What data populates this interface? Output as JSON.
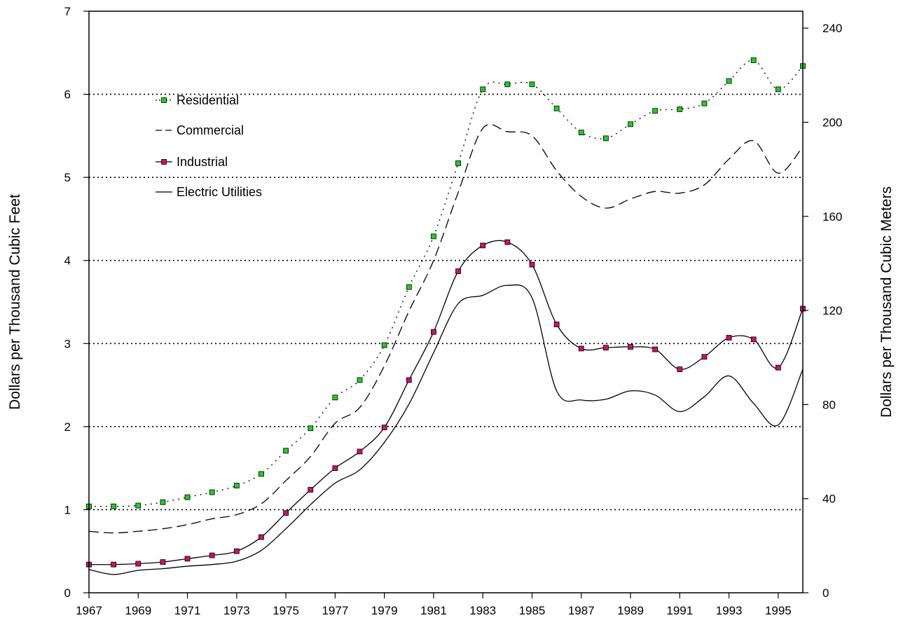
{
  "chart_data": {
    "type": "line",
    "xlabel": "",
    "ylabel": "Dollars per Thousand Cubic Feet",
    "ylabel_right": "Dollars per Thousand Cubic Meters",
    "xlim": [
      1967,
      1996
    ],
    "ylim": [
      0,
      7
    ],
    "ylim_right": [
      0,
      247.2
    ],
    "x_ticks": [
      1967,
      1969,
      1971,
      1973,
      1975,
      1977,
      1979,
      1981,
      1983,
      1985,
      1987,
      1989,
      1991,
      1993,
      1995
    ],
    "y_ticks": [
      0,
      1,
      2,
      3,
      4,
      5,
      6,
      7
    ],
    "y_ticks_right": [
      0,
      40,
      80,
      120,
      160,
      200,
      240
    ],
    "gridlines_y": [
      1,
      2,
      3,
      4,
      5,
      6
    ],
    "legend_position": "top-left",
    "x": [
      1967,
      1968,
      1969,
      1970,
      1971,
      1972,
      1973,
      1974,
      1975,
      1976,
      1977,
      1978,
      1979,
      1980,
      1981,
      1982,
      1983,
      1984,
      1985,
      1986,
      1987,
      1988,
      1989,
      1990,
      1991,
      1992,
      1993,
      1994,
      1995,
      1996
    ],
    "series": [
      {
        "name": "Residential",
        "style": "dotted",
        "marker": "square",
        "marker_color": "#22cc22",
        "values": [
          1.04,
          1.04,
          1.05,
          1.09,
          1.15,
          1.21,
          1.29,
          1.43,
          1.71,
          1.98,
          2.35,
          2.56,
          2.98,
          3.68,
          4.29,
          5.17,
          6.06,
          6.12,
          6.12,
          5.83,
          5.54,
          5.47,
          5.64,
          5.8,
          5.82,
          5.89,
          6.16,
          6.41,
          6.06,
          6.34
        ]
      },
      {
        "name": "Commercial",
        "style": "dashed",
        "marker": "none",
        "values": [
          0.74,
          0.72,
          0.74,
          0.77,
          0.82,
          0.89,
          0.94,
          1.07,
          1.35,
          1.64,
          2.04,
          2.23,
          2.73,
          3.39,
          4.0,
          4.82,
          5.59,
          5.55,
          5.5,
          5.08,
          4.77,
          4.63,
          4.74,
          4.83,
          4.81,
          4.91,
          5.22,
          5.44,
          5.05,
          5.37
        ]
      },
      {
        "name": "Industrial",
        "style": "solid",
        "marker": "square",
        "marker_color": "#cc1166",
        "values": [
          0.34,
          0.34,
          0.35,
          0.37,
          0.41,
          0.45,
          0.5,
          0.67,
          0.96,
          1.24,
          1.5,
          1.7,
          1.99,
          2.56,
          3.14,
          3.87,
          4.18,
          4.22,
          3.95,
          3.23,
          2.94,
          2.95,
          2.96,
          2.93,
          2.69,
          2.84,
          3.07,
          3.05,
          2.71,
          3.42
        ]
      },
      {
        "name": "Electric Utilities",
        "style": "solid",
        "marker": "none",
        "values": [
          0.28,
          0.22,
          0.27,
          0.29,
          0.32,
          0.34,
          0.38,
          0.51,
          0.77,
          1.06,
          1.32,
          1.48,
          1.81,
          2.27,
          2.89,
          3.48,
          3.58,
          3.7,
          3.55,
          2.43,
          2.32,
          2.33,
          2.43,
          2.38,
          2.18,
          2.36,
          2.61,
          2.28,
          2.02,
          2.69
        ]
      }
    ]
  }
}
